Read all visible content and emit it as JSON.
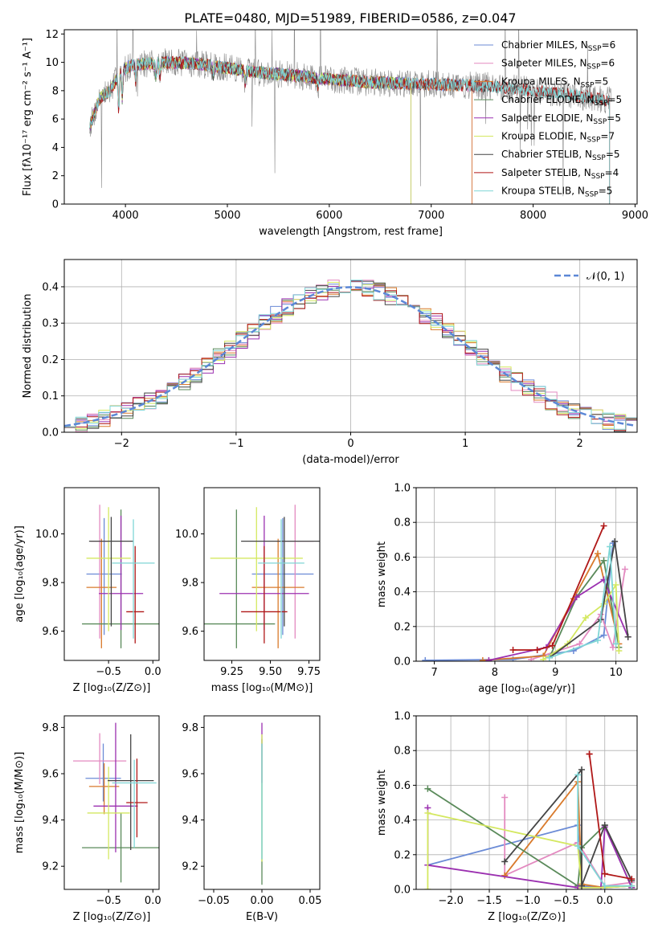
{
  "figure": {
    "title": "PLATE=0480, MJD=51989, FIBERID=0586, z=0.047"
  },
  "chart_data": [
    {
      "id": "spectrum",
      "type": "line",
      "title": "PLATE=0480, MJD=51989, FIBERID=0586, z=0.047",
      "xlabel": "wavelength [Angstrom, rest frame]",
      "ylabel": "Flux [fλ10⁻¹⁷ erg cm⁻² s⁻¹ A⁻¹]",
      "xlim": [
        3400,
        9020
      ],
      "ylim": [
        0,
        12.3
      ],
      "xticks": [
        4000,
        5000,
        6000,
        7000,
        8000,
        9000
      ],
      "yticks": [
        0,
        2,
        4,
        6,
        8,
        10,
        12
      ],
      "legend_position": "top-right",
      "series": [
        {
          "name": "Chabrier MILES, N$_{SSP}$=6",
          "label": "Chabrier MILES, N",
          "nssp": "=6",
          "color": "#6b8bd6",
          "range": [
            3650,
            7400
          ]
        },
        {
          "name": "Salpeter MILES, N$_{SSP}$=6",
          "label": "Salpeter MILES, N",
          "nssp": "=6",
          "color": "#e38ac0",
          "range": [
            3650,
            7400
          ]
        },
        {
          "name": "Kroupa MILES, N$_{SSP}$=5",
          "label": "Kroupa MILES, N",
          "nssp": "=5",
          "color": "#d97a2b",
          "range": [
            3650,
            7400
          ]
        },
        {
          "name": "Chabrier ELODIE, N$_{SSP}$=5",
          "label": "Chabrier ELODIE, N",
          "nssp": "=5",
          "color": "#5a8a5a",
          "range": [
            3650,
            6800
          ]
        },
        {
          "name": "Salpeter ELODIE, N$_{SSP}$=5",
          "label": "Salpeter ELODIE, N",
          "nssp": "=5",
          "color": "#9b30b0",
          "range": [
            3650,
            6800
          ]
        },
        {
          "name": "Kroupa ELODIE, N$_{SSP}$=7",
          "label": "Kroupa ELODIE, N",
          "nssp": "=7",
          "color": "#d4e860",
          "range": [
            3650,
            6800
          ]
        },
        {
          "name": "Chabrier STELIB, N$_{SSP}$=5",
          "label": "Chabrier STELIB, N",
          "nssp": "=5",
          "color": "#444444",
          "range": [
            3650,
            8750
          ]
        },
        {
          "name": "Salpeter STELIB, N$_{SSP}$=4",
          "label": "Salpeter STELIB, N",
          "nssp": "=4",
          "color": "#b01818",
          "range": [
            3650,
            8750
          ]
        },
        {
          "name": "Kroupa STELIB, N$_{SSP}$=5",
          "label": "Kroupa STELIB, N",
          "nssp": "=5",
          "color": "#7fd6d6",
          "range": [
            3650,
            8750
          ]
        }
      ],
      "data_color": "#888888",
      "continuum": {
        "x": [
          3650,
          3750,
          3850,
          3950,
          4050,
          4200,
          4400,
          4700,
          5000,
          5300,
          5600,
          6000,
          6400,
          6800,
          7200,
          7600,
          8000,
          8400,
          8750
        ],
        "y": [
          5.5,
          7.5,
          8.0,
          9.3,
          9.8,
          9.9,
          10.0,
          9.9,
          9.6,
          9.3,
          9.1,
          8.8,
          8.6,
          8.5,
          8.4,
          8.3,
          8.0,
          7.7,
          7.3
        ]
      }
    },
    {
      "id": "residuals",
      "type": "histogram",
      "xlabel": "(data-model)/error",
      "ylabel": "Normed distribution",
      "xlim": [
        -2.5,
        2.5
      ],
      "ylim": [
        0,
        0.475
      ],
      "xticks": [
        -2,
        -1,
        0,
        1,
        2
      ],
      "yticks": [
        0.0,
        0.1,
        0.2,
        0.3,
        0.4
      ],
      "bin_width": 0.1,
      "reference": {
        "name": "$\\mathcal{N}(0,1)$",
        "label": "𝒩(0, 1)",
        "color": "#5b87d6"
      },
      "legend_position": "top-right"
    },
    {
      "id": "age-vs-z",
      "type": "errorbar",
      "xlabel": "Z [log₁₀(Z/Z⊙)]",
      "ylabel": "age  [log₁₀(age/yr)]",
      "xlim": [
        -1.0,
        0.07
      ],
      "ylim": [
        9.48,
        10.19
      ],
      "xticks": [
        -0.5,
        0.0
      ],
      "yticks": [
        9.6,
        9.8,
        10.0
      ],
      "points": [
        {
          "color": "#6b8bd6",
          "x": -0.55,
          "xerr": 0.2,
          "y": 9.835,
          "yerr": [
            0.25,
            0.23
          ]
        },
        {
          "color": "#e38ac0",
          "x": -0.6,
          "xerr": 0.1,
          "y": 9.97,
          "yerr": [
            0.4,
            0.15
          ]
        },
        {
          "color": "#d97a2b",
          "x": -0.58,
          "xerr": 0.17,
          "y": 9.78,
          "yerr": [
            0.25,
            0.2
          ]
        },
        {
          "color": "#5a8a5a",
          "x": -0.36,
          "xerr": 0.44,
          "y": 9.63,
          "yerr": [
            0.1,
            0.47
          ]
        },
        {
          "color": "#9b30b0",
          "x": -0.36,
          "xerr": 0.25,
          "y": 9.755,
          "yerr": [
            0.15,
            0.32
          ]
        },
        {
          "color": "#d4e860",
          "x": -0.5,
          "xerr": 0.25,
          "y": 9.9,
          "yerr": [
            0.3,
            0.21
          ]
        },
        {
          "color": "#444444",
          "x": -0.47,
          "xerr": 0.25,
          "y": 9.97,
          "yerr": [
            0.35,
            0.1
          ]
        },
        {
          "color": "#b01818",
          "x": -0.2,
          "xerr": 0.1,
          "y": 9.68,
          "yerr": [
            0.13,
            0.27
          ]
        },
        {
          "color": "#7fd6d6",
          "x": -0.22,
          "xerr": 0.24,
          "y": 9.88,
          "yerr": [
            0.31,
            0.18
          ]
        }
      ]
    },
    {
      "id": "age-vs-mass",
      "type": "errorbar",
      "xlabel": "mass [log₁₀(M/M⊙)]",
      "ylabel": "",
      "xlim": [
        9.07,
        9.82
      ],
      "ylim": [
        9.48,
        10.19
      ],
      "xticks": [
        9.25,
        9.5,
        9.75
      ],
      "yticks": [
        9.6,
        9.8,
        10.0
      ],
      "points": [
        {
          "color": "#6b8bd6",
          "x": 9.58,
          "xerr": 0.2,
          "y": 9.835,
          "yerr": [
            0.25,
            0.23
          ]
        },
        {
          "color": "#e38ac0",
          "x": 9.66,
          "xerr": 0.12,
          "y": 9.97,
          "yerr": [
            0.4,
            0.15
          ]
        },
        {
          "color": "#d97a2b",
          "x": 9.55,
          "xerr": 0.17,
          "y": 9.78,
          "yerr": [
            0.25,
            0.2
          ]
        },
        {
          "color": "#5a8a5a",
          "x": 9.28,
          "xerr": 0.25,
          "y": 9.63,
          "yerr": [
            0.1,
            0.47
          ]
        },
        {
          "color": "#9b30b0",
          "x": 9.46,
          "xerr": 0.29,
          "y": 9.755,
          "yerr": [
            0.15,
            0.32
          ]
        },
        {
          "color": "#d4e860",
          "x": 9.41,
          "xerr": 0.3,
          "y": 9.9,
          "yerr": [
            0.3,
            0.21
          ]
        },
        {
          "color": "#444444",
          "x": 9.59,
          "xerr": 0.28,
          "y": 9.97,
          "yerr": [
            0.35,
            0.1
          ]
        },
        {
          "color": "#b01818",
          "x": 9.46,
          "xerr": 0.15,
          "y": 9.68,
          "yerr": [
            0.13,
            0.27
          ]
        },
        {
          "color": "#7fd6d6",
          "x": 9.57,
          "xerr": 0.15,
          "y": 9.88,
          "yerr": [
            0.31,
            0.18
          ]
        }
      ]
    },
    {
      "id": "weight-vs-age",
      "type": "line",
      "xlabel": "age  [log₁₀(age/yr)]",
      "ylabel": "mass weight",
      "xlim": [
        6.7,
        10.35
      ],
      "ylim": [
        0,
        1.0
      ],
      "xticks": [
        7,
        8,
        9,
        10
      ],
      "yticks": [
        0.0,
        0.2,
        0.4,
        0.6,
        0.8,
        1.0
      ],
      "series": [
        {
          "color": "#6b8bd6",
          "x": [
            6.85,
            8.3,
            9.3,
            9.8,
            9.95
          ],
          "y": [
            0.005,
            0.01,
            0.06,
            0.15,
            0.68
          ]
        },
        {
          "color": "#e38ac0",
          "x": [
            8.6,
            9.4,
            9.75,
            9.95,
            10.15
          ],
          "y": [
            0.01,
            0.1,
            0.27,
            0.08,
            0.53
          ]
        },
        {
          "color": "#d97a2b",
          "x": [
            7.8,
            8.8,
            9.3,
            9.7,
            10.05
          ],
          "y": [
            0.005,
            0.03,
            0.36,
            0.62,
            0.1
          ]
        },
        {
          "color": "#5a8a5a",
          "x": [
            8.9,
            9.35,
            9.8,
            10.05
          ],
          "y": [
            0.02,
            0.37,
            0.58,
            0.08
          ]
        },
        {
          "color": "#9b30b0",
          "x": [
            7.9,
            8.85,
            9.35,
            9.8,
            10.2
          ],
          "y": [
            0.005,
            0.08,
            0.37,
            0.47,
            0.14
          ]
        },
        {
          "color": "#d4e860",
          "x": [
            8.8,
            9.2,
            9.5,
            9.8,
            10.0,
            10.05
          ],
          "y": [
            0.01,
            0.1,
            0.25,
            0.33,
            0.44,
            0.06
          ]
        },
        {
          "color": "#444444",
          "x": [
            8.9,
            9.75,
            9.98,
            10.2
          ],
          "y": [
            0.02,
            0.24,
            0.69,
            0.14
          ]
        },
        {
          "color": "#b01818",
          "x": [
            8.3,
            8.7,
            8.95,
            9.8
          ],
          "y": [
            0.065,
            0.065,
            0.09,
            0.78
          ]
        },
        {
          "color": "#7fd6d6",
          "x": [
            8.9,
            9.7,
            9.9,
            10.0
          ],
          "y": [
            0.02,
            0.12,
            0.66,
            0.1
          ]
        }
      ]
    },
    {
      "id": "mass-vs-z",
      "type": "errorbar",
      "xlabel": "Z [log₁₀(Z/Z⊙)]",
      "ylabel": "mass [log₁₀(M/M⊙)]",
      "xlim": [
        -1.0,
        0.07
      ],
      "ylim": [
        9.1,
        9.85
      ],
      "xticks": [
        -0.5,
        0.0
      ],
      "yticks": [
        9.2,
        9.4,
        9.6,
        9.8
      ],
      "points": [
        {
          "color": "#6b8bd6",
          "x": -0.56,
          "xerr": 0.2,
          "y": 9.58,
          "yerr": [
            0.1,
            0.15
          ]
        },
        {
          "color": "#e38ac0",
          "x": -0.6,
          "xerr": 0.3,
          "y": 9.655,
          "yerr": [
            0.1,
            0.12
          ]
        },
        {
          "color": "#d97a2b",
          "x": -0.55,
          "xerr": 0.17,
          "y": 9.545,
          "yerr": [
            0.12,
            0.1
          ]
        },
        {
          "color": "#5a8a5a",
          "x": -0.36,
          "xerr": 0.44,
          "y": 9.28,
          "yerr": [
            0.15,
            0.15
          ]
        },
        {
          "color": "#9b30b0",
          "x": -0.42,
          "xerr": 0.25,
          "y": 9.46,
          "yerr": [
            0.2,
            0.36
          ]
        },
        {
          "color": "#d4e860",
          "x": -0.5,
          "xerr": 0.24,
          "y": 9.43,
          "yerr": [
            0.2,
            0.2
          ]
        },
        {
          "color": "#444444",
          "x": -0.25,
          "xerr": 0.26,
          "y": 9.57,
          "yerr": [
            0.3,
            0.2
          ]
        },
        {
          "color": "#b01818",
          "x": -0.18,
          "xerr": 0.12,
          "y": 9.475,
          "yerr": [
            0.15,
            0.19
          ]
        },
        {
          "color": "#7fd6d6",
          "x": -0.21,
          "xerr": 0.25,
          "y": 9.56,
          "yerr": [
            0.28,
            0.1
          ]
        }
      ]
    },
    {
      "id": "mass-vs-ebv",
      "type": "errorbar",
      "xlabel": "E(B-V)",
      "ylabel": "",
      "xlim": [
        -0.06,
        0.06
      ],
      "ylim": [
        9.1,
        9.85
      ],
      "xticks": [
        -0.05,
        0.0,
        0.05
      ],
      "yticks": [
        9.2,
        9.4,
        9.6,
        9.8
      ],
      "points": [
        {
          "color": "#5a8a5a",
          "x": 0.0,
          "xerr": 0.0,
          "y": 9.7,
          "yerr": [
            0.58,
            0.05
          ]
        },
        {
          "color": "#9b30b0",
          "x": 0.0,
          "xerr": 0.0,
          "y": 9.76,
          "yerr": [
            0.2,
            0.06
          ]
        },
        {
          "color": "#d4e860",
          "x": 0.0,
          "xerr": 0.0,
          "y": 9.72,
          "yerr": [
            0.5,
            0.05
          ]
        },
        {
          "color": "#7fd6d6",
          "x": 0.0,
          "xerr": 0.0,
          "y": 9.68,
          "yerr": [
            0.45,
            0.05
          ]
        }
      ]
    },
    {
      "id": "weight-vs-z",
      "type": "line",
      "xlabel": "Z [log₁₀(Z/Z⊙)]",
      "ylabel": "mass weight",
      "xlim": [
        -2.45,
        0.42
      ],
      "ylim": [
        0,
        1.0
      ],
      "xticks": [
        -2.0,
        -1.5,
        -1.0,
        -0.5,
        0.0
      ],
      "yticks": [
        0.0,
        0.2,
        0.4,
        0.6,
        0.8,
        1.0
      ],
      "series": [
        {
          "color": "#6b8bd6",
          "x": [
            -2.3,
            -0.35,
            -0.3,
            0.0,
            0.35
          ],
          "y": [
            0.14,
            0.37,
            0.02,
            0.01,
            0.02
          ]
        },
        {
          "color": "#e38ac0",
          "x": [
            -1.3,
            -1.3,
            -0.35,
            0.0,
            0.35
          ],
          "y": [
            0.53,
            0.08,
            0.27,
            0.02,
            0.04
          ]
        },
        {
          "color": "#d97a2b",
          "x": [
            -1.3,
            -0.35,
            -0.3,
            0.0,
            0.35
          ],
          "y": [
            0.08,
            0.62,
            0.03,
            0.01,
            0.02
          ]
        },
        {
          "color": "#5a8a5a",
          "x": [
            -2.3,
            -0.35,
            -0.3,
            0.0,
            0.35
          ],
          "y": [
            0.58,
            0.02,
            0.24,
            0.37,
            0.01
          ]
        },
        {
          "color": "#9b30b0",
          "x": [
            -2.3,
            -2.3,
            -0.35,
            -0.05,
            0.0,
            0.35
          ],
          "y": [
            0.47,
            0.14,
            0.01,
            0.01,
            0.36,
            0.01
          ]
        },
        {
          "color": "#d4e860",
          "x": [
            -2.3,
            -2.3,
            -0.35,
            -0.3,
            0.0,
            0.35
          ],
          "y": [
            0.0,
            0.44,
            0.25,
            0.01,
            0.01,
            0.02
          ]
        },
        {
          "color": "#444444",
          "x": [
            -1.3,
            -0.3,
            -0.3,
            0.0,
            0.35
          ],
          "y": [
            0.16,
            0.69,
            0.02,
            0.37,
            0.05
          ]
        },
        {
          "color": "#b01818",
          "x": [
            -0.2,
            0.0,
            0.35,
            0.0,
            -0.2
          ],
          "y": [
            0.78,
            0.09,
            0.06,
            0.09,
            0.78
          ]
        },
        {
          "color": "#7fd6d6",
          "x": [
            -0.35,
            -0.35,
            0.0,
            0.35
          ],
          "y": [
            0.66,
            0.25,
            0.02,
            0.02
          ]
        }
      ]
    }
  ]
}
